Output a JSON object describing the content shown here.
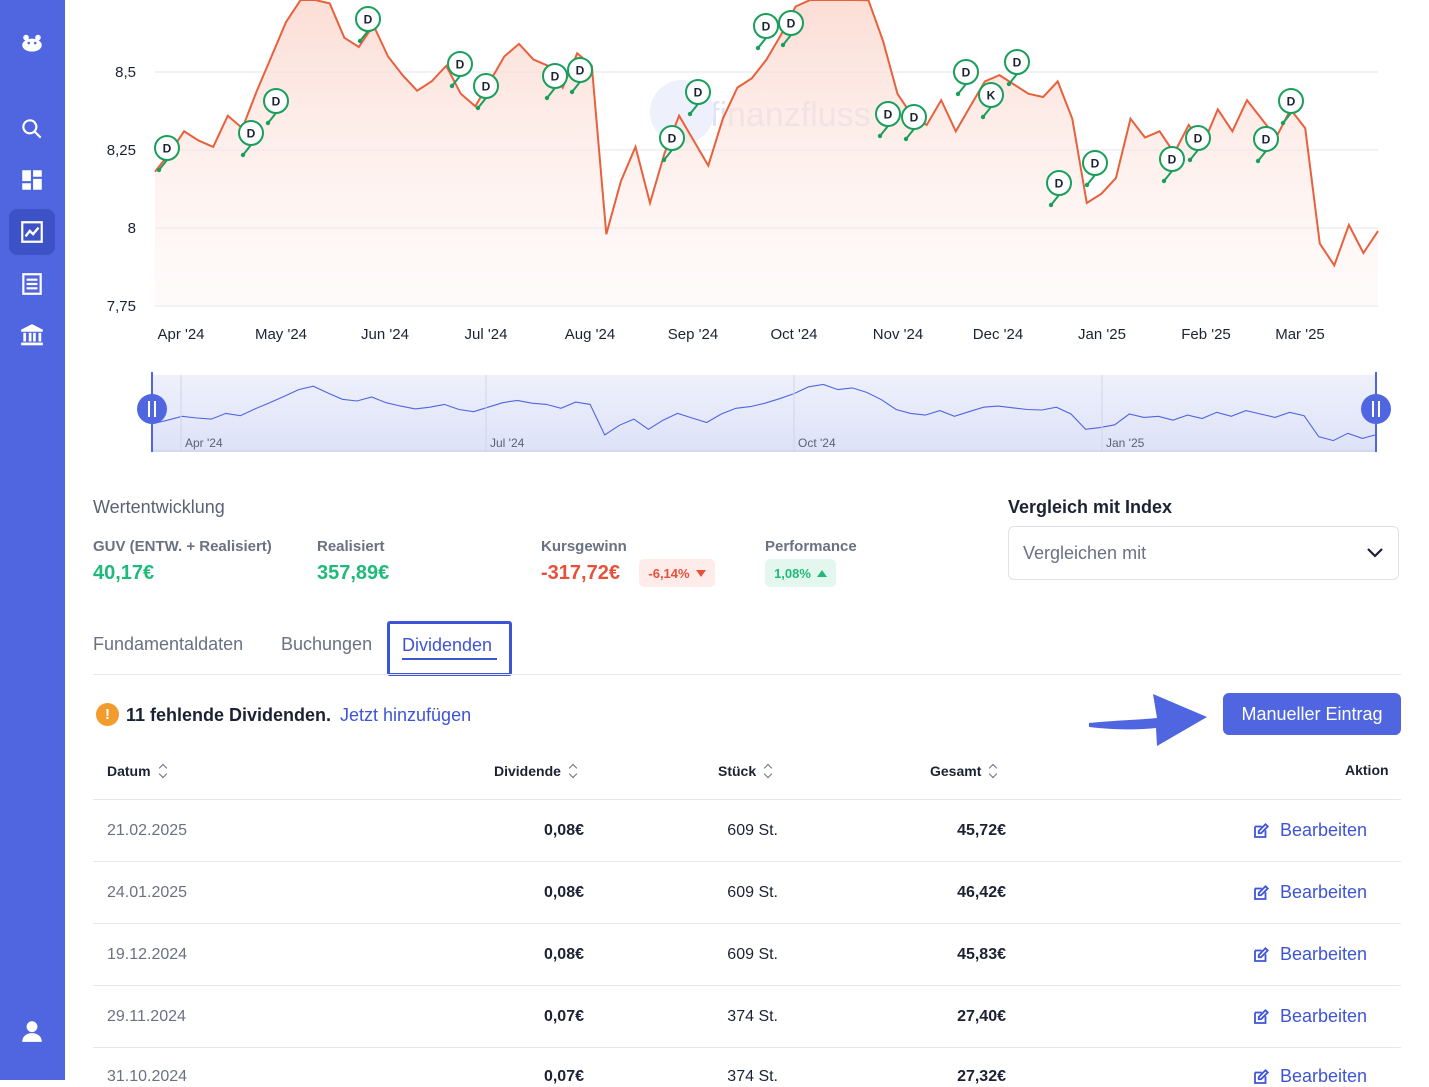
{
  "sidebar": {
    "items": [
      {
        "icon": "hippo-logo-icon"
      },
      {
        "icon": "search-icon"
      },
      {
        "icon": "dashboard-icon"
      },
      {
        "icon": "chart-icon",
        "active": true
      },
      {
        "icon": "list-icon"
      },
      {
        "icon": "bank-icon"
      },
      {
        "icon": "user-icon"
      }
    ]
  },
  "chart_data": {
    "type": "line",
    "watermark": "finanzfluss",
    "y_ticks": [
      "8,5",
      "8,25",
      "8",
      "7,75"
    ],
    "ylim": [
      7.75,
      8.75
    ],
    "x_ticks": [
      "Apr '24",
      "May '24",
      "Jun '24",
      "Jul '24",
      "Aug '24",
      "Sep '24",
      "Oct '24",
      "Nov '24",
      "Dec '24",
      "Jan '25",
      "Feb '25",
      "Mar '25"
    ],
    "navigator_ticks": [
      "Apr '24",
      "Jul '24",
      "Oct '24",
      "Jan '25"
    ],
    "series": [
      {
        "color": "#e8603c",
        "values": [
          8.18,
          8.24,
          8.31,
          8.28,
          8.26,
          8.36,
          8.32,
          8.44,
          8.55,
          8.66,
          8.78,
          8.84,
          8.72,
          8.61,
          8.58,
          8.65,
          8.55,
          8.49,
          8.44,
          8.47,
          8.52,
          8.43,
          8.39,
          8.47,
          8.55,
          8.59,
          8.54,
          8.52,
          8.45,
          8.56,
          8.52,
          7.98,
          8.15,
          8.26,
          8.08,
          8.24,
          8.36,
          8.28,
          8.2,
          8.35,
          8.45,
          8.48,
          8.54,
          8.62,
          8.71,
          8.83,
          8.87,
          8.78,
          8.81,
          8.73,
          8.6,
          8.43,
          8.36,
          8.33,
          8.41,
          8.31,
          8.39,
          8.47,
          8.49,
          8.46,
          8.43,
          8.42,
          8.47,
          8.35,
          8.08,
          8.11,
          8.16,
          8.35,
          8.29,
          8.31,
          8.24,
          8.33,
          8.27,
          8.38,
          8.31,
          8.41,
          8.35,
          8.29,
          8.38,
          8.32,
          7.95,
          7.88,
          8.01,
          7.92,
          7.99
        ]
      }
    ],
    "markers": [
      "D",
      "D",
      "D",
      "D",
      "D",
      "D",
      "D",
      "D",
      "D",
      "D",
      "D",
      "D",
      "D",
      "D",
      "D",
      "K",
      "D",
      "D",
      "D",
      "D",
      "D",
      "D",
      "D",
      "D",
      "D"
    ]
  },
  "performance": {
    "title": "Wertentwicklung",
    "guv_label": "GUV (ENTW. + Realisiert)",
    "guv_value": "40,17€",
    "realisiert_label": "Realisiert",
    "realisiert_value": "357,89€",
    "kursgewinn_label": "Kursgewinn",
    "kursgewinn_value": "-317,72€",
    "kursgewinn_pct": "-6,14%",
    "performance_label": "Performance",
    "performance_pct": "1,08%"
  },
  "index_compare": {
    "title": "Vergleich mit Index",
    "placeholder": "Vergleichen mit"
  },
  "tabs": [
    "Fundamentaldaten",
    "Buchungen",
    "Dividenden"
  ],
  "dividends": {
    "missing_text": "11 fehlende Dividenden.",
    "add_link": "Jetzt hinzufügen",
    "manual_button": "Manueller Eintrag",
    "columns": [
      "Datum",
      "Dividende",
      "Stück",
      "Gesamt",
      "Aktion"
    ],
    "rows": [
      {
        "datum": "21.02.2025",
        "dividende": "0,08€",
        "stueck": "609 St.",
        "gesamt": "45,72€",
        "aktion": "Bearbeiten"
      },
      {
        "datum": "24.01.2025",
        "dividende": "0,08€",
        "stueck": "609 St.",
        "gesamt": "46,42€",
        "aktion": "Bearbeiten"
      },
      {
        "datum": "19.12.2024",
        "dividende": "0,08€",
        "stueck": "609 St.",
        "gesamt": "45,83€",
        "aktion": "Bearbeiten"
      },
      {
        "datum": "29.11.2024",
        "dividende": "0,07€",
        "stueck": "374 St.",
        "gesamt": "27,40€",
        "aktion": "Bearbeiten"
      },
      {
        "datum": "31.10.2024",
        "dividende": "0,07€",
        "stueck": "374 St.",
        "gesamt": "27,32€",
        "aktion": "Bearbeiten"
      }
    ]
  }
}
